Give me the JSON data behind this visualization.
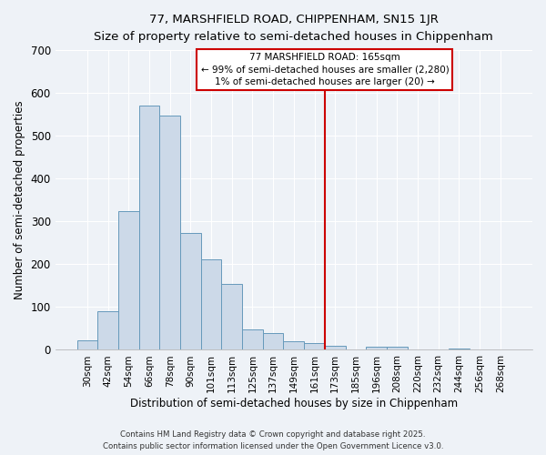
{
  "title1": "77, MARSHFIELD ROAD, CHIPPENHAM, SN15 1JR",
  "title2": "Size of property relative to semi-detached houses in Chippenham",
  "xlabel": "Distribution of semi-detached houses by size in Chippenham",
  "ylabel": "Number of semi-detached properties",
  "bar_labels": [
    "30sqm",
    "42sqm",
    "54sqm",
    "66sqm",
    "78sqm",
    "90sqm",
    "101sqm",
    "113sqm",
    "125sqm",
    "137sqm",
    "149sqm",
    "161sqm",
    "173sqm",
    "185sqm",
    "196sqm",
    "208sqm",
    "220sqm",
    "232sqm",
    "244sqm",
    "256sqm",
    "268sqm"
  ],
  "bar_values": [
    22,
    90,
    325,
    570,
    548,
    272,
    212,
    155,
    47,
    40,
    20,
    15,
    10,
    2,
    8,
    8,
    0,
    0,
    4,
    0,
    2
  ],
  "bar_color": "#ccd9e8",
  "bar_edge_color": "#6699bb",
  "vline_color": "#cc0000",
  "annotation_title": "77 MARSHFIELD ROAD: 165sqm",
  "annotation_line1": "← 99% of semi-detached houses are smaller (2,280)",
  "annotation_line2": "1% of semi-detached houses are larger (20) →",
  "annotation_box_edgecolor": "#cc0000",
  "ylim": [
    0,
    700
  ],
  "yticks": [
    0,
    100,
    200,
    300,
    400,
    500,
    600,
    700
  ],
  "footer1": "Contains HM Land Registry data © Crown copyright and database right 2025.",
  "footer2": "Contains public sector information licensed under the Open Government Licence v3.0.",
  "bg_color": "#eef2f7",
  "grid_color": "#ffffff"
}
